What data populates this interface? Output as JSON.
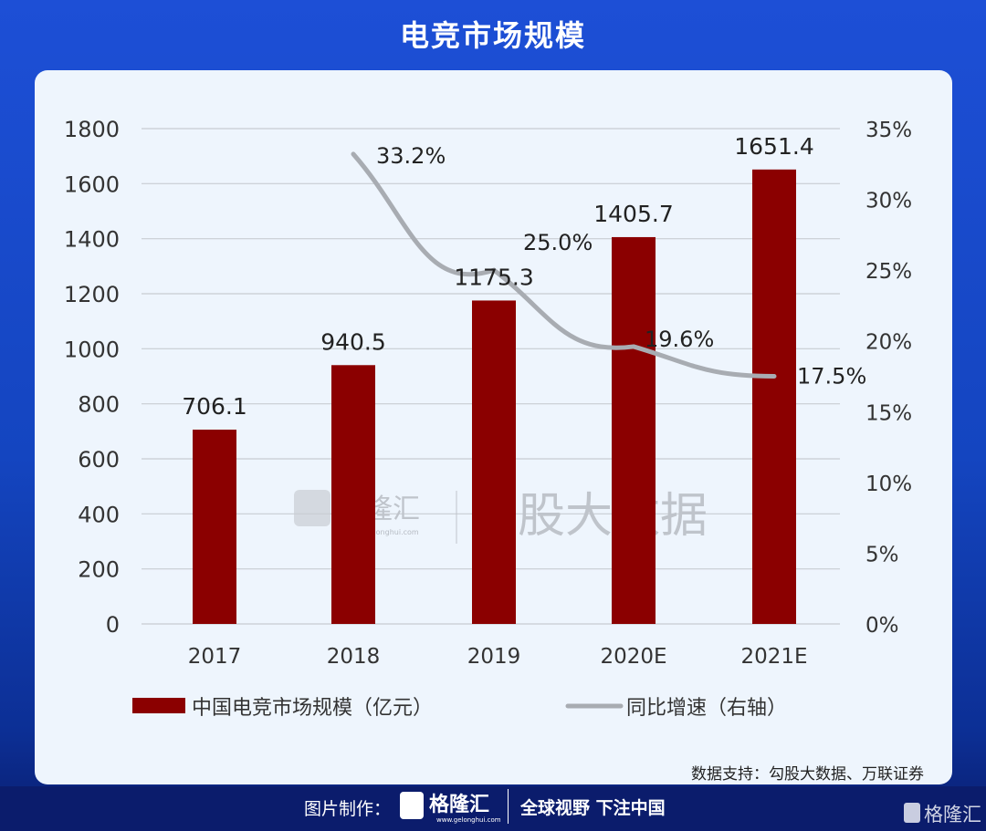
{
  "title": "电竞市场规模",
  "chart_data": {
    "type": "bar+line",
    "categories": [
      "2017",
      "2018",
      "2019",
      "2020E",
      "2021E"
    ],
    "series": [
      {
        "name": "中国电竞市场规模（亿元）",
        "type": "bar",
        "axis": "left",
        "values": [
          706.1,
          940.5,
          1175.3,
          1405.7,
          1651.4
        ],
        "labels": [
          "706.1",
          "940.5",
          "1175.3",
          "1405.7",
          "1651.4"
        ],
        "color": "#8b0000"
      },
      {
        "name": "同比增速（右轴）",
        "type": "line",
        "axis": "right",
        "values": [
          null,
          33.2,
          25.0,
          19.6,
          17.5
        ],
        "labels": [
          "",
          "33.2%",
          "25.0%",
          "19.6%",
          "17.5%"
        ],
        "color": "#a8acb2"
      }
    ],
    "left_axis": {
      "range": [
        0,
        1800
      ],
      "ticks": [
        "0",
        "200",
        "400",
        "600",
        "800",
        "1000",
        "1200",
        "1400",
        "1600",
        "1800"
      ]
    },
    "right_axis": {
      "range": [
        0,
        35
      ],
      "ticks": [
        "0%",
        "5%",
        "10%",
        "15%",
        "20%",
        "25%",
        "30%",
        "35%"
      ]
    },
    "grid": true,
    "legend_position": "bottom"
  },
  "source": "数据支持：勾股大数据、万联证券",
  "watermark": {
    "brand": "格隆汇",
    "url": "www.gelonghui.com",
    "text": "勾股大数据"
  },
  "footer": {
    "made_by": "图片制作：",
    "brand": "格隆汇",
    "url": "www.gelonghui.com",
    "slogan": "全球视野 下注中国",
    "corner_brand": "格隆汇"
  }
}
